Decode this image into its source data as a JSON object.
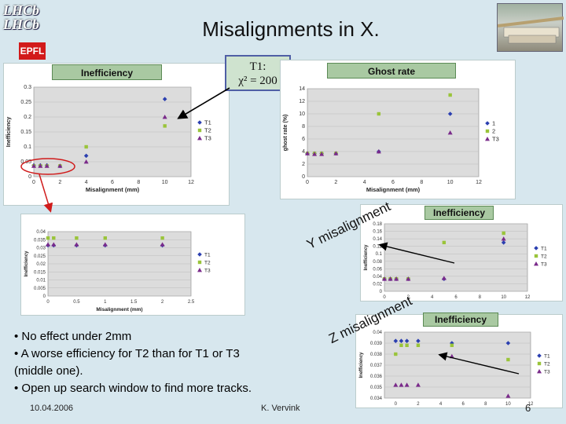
{
  "header": {
    "title": "Misalignments in X.",
    "logo_lhcb_line1": "LHCb",
    "logo_lhcb_line2": "LHCb",
    "logo_epfl": "EPFL"
  },
  "labels": {
    "inefficiency_top": "Inefficiency",
    "ghost_rate": "Ghost rate",
    "chi_line1": "T1:",
    "chi_line2": "χ² = 200",
    "inefficiency_mid": "Inefficiency",
    "inefficiency_bot": "Inefficiency",
    "y_misalignment": "Y misalignment",
    "z_misalignment": "Z misalignment"
  },
  "bullets": [
    "• No effect under 2mm",
    "• A worse efficiency for T2 than for T1 or T3 (middle one).",
    "• Open up search window to find more tracks."
  ],
  "footer": {
    "date": "10.04.2006",
    "author": "K. Vervink",
    "page": "6"
  },
  "chart_data": [
    {
      "type": "scatter",
      "xlabel": "Misalignment (mm)",
      "ylabel": "Inefficiency",
      "xlim": [
        0,
        12
      ],
      "ylim": [
        0.0,
        0.3
      ],
      "xticks": [
        0,
        2,
        4,
        6,
        8,
        10,
        12
      ],
      "yticks": [
        0.0,
        0.05,
        0.1,
        0.15,
        0.2,
        0.25,
        0.3
      ],
      "yticklabels": [
        "0",
        "0.05",
        "0.1",
        "0.15",
        "0.2",
        "0.25",
        "0.3"
      ],
      "series": [
        {
          "name": "T1",
          "color": "#2b3fb0",
          "marker": "diamond",
          "x": [
            0,
            0.5,
            1,
            2,
            4,
            10
          ],
          "y": [
            0.038,
            0.038,
            0.038,
            0.036,
            0.07,
            0.26
          ]
        },
        {
          "name": "T2",
          "color": "#9ac43a",
          "marker": "square",
          "x": [
            0,
            0.5,
            1,
            2,
            4,
            10
          ],
          "y": [
            0.036,
            0.036,
            0.036,
            0.036,
            0.1,
            0.17
          ]
        },
        {
          "name": "T3",
          "color": "#7a2a8a",
          "marker": "triangle",
          "x": [
            0,
            0.5,
            1,
            2,
            4,
            10
          ],
          "y": [
            0.036,
            0.036,
            0.036,
            0.036,
            0.05,
            0.2
          ]
        }
      ]
    },
    {
      "type": "scatter",
      "xlabel": "Misalignment (mm)",
      "ylabel": "ghost rate (%)",
      "xlim": [
        0,
        12
      ],
      "ylim": [
        0,
        14
      ],
      "xticks": [
        0,
        2,
        4,
        6,
        8,
        10,
        12
      ],
      "yticks": [
        0,
        2,
        4,
        6,
        8,
        10,
        12,
        14
      ],
      "series": [
        {
          "name": "1",
          "color": "#2b3fb0",
          "marker": "diamond",
          "x": [
            0,
            0.5,
            1,
            2,
            5,
            10
          ],
          "y": [
            3.7,
            3.7,
            3.7,
            3.7,
            4.0,
            10.0
          ]
        },
        {
          "name": "2",
          "color": "#9ac43a",
          "marker": "square",
          "x": [
            0,
            0.5,
            1,
            2,
            5,
            10
          ],
          "y": [
            3.7,
            3.7,
            3.7,
            3.7,
            10.0,
            13.0
          ]
        },
        {
          "name": "T3",
          "color": "#7a2a8a",
          "marker": "triangle",
          "x": [
            0,
            0.5,
            1,
            2,
            5,
            10
          ],
          "y": [
            3.7,
            3.6,
            3.6,
            3.7,
            4.0,
            7.0
          ]
        }
      ]
    },
    {
      "type": "scatter",
      "xlabel": "Misalignment (mm)",
      "ylabel": "Inefficiency",
      "xlim": [
        0,
        2.5
      ],
      "ylim": [
        0,
        0.04
      ],
      "xticks": [
        0,
        0.5,
        1,
        1.5,
        2,
        2.5
      ],
      "yticks": [
        0,
        0.005,
        0.01,
        0.015,
        0.02,
        0.025,
        0.03,
        0.035,
        0.04
      ],
      "series": [
        {
          "name": "T1",
          "color": "#2b3fb0",
          "marker": "diamond",
          "x": [
            0,
            0.1,
            0.5,
            1,
            2
          ],
          "y": [
            0.0315,
            0.0315,
            0.0315,
            0.0315,
            0.0315
          ]
        },
        {
          "name": "T2",
          "color": "#9ac43a",
          "marker": "square",
          "x": [
            0,
            0.1,
            0.5,
            1,
            2
          ],
          "y": [
            0.036,
            0.036,
            0.036,
            0.036,
            0.036
          ]
        },
        {
          "name": "T3",
          "color": "#7a2a8a",
          "marker": "triangle",
          "x": [
            0,
            0.1,
            0.5,
            1,
            2
          ],
          "y": [
            0.032,
            0.032,
            0.032,
            0.032,
            0.032
          ]
        }
      ]
    },
    {
      "type": "scatter",
      "xlabel": "Misalignment (mm)",
      "ylabel": "Inefficiency",
      "xlim": [
        0,
        12
      ],
      "ylim": [
        0,
        0.18
      ],
      "xticks": [
        0,
        2,
        4,
        6,
        8,
        10,
        12
      ],
      "yticks": [
        0,
        0.02,
        0.04,
        0.06,
        0.08,
        0.1,
        0.12,
        0.14,
        0.16,
        0.18
      ],
      "series": [
        {
          "name": "T1",
          "color": "#2b3fb0",
          "marker": "diamond",
          "x": [
            0,
            0.5,
            1,
            2,
            5,
            10
          ],
          "y": [
            0.033,
            0.033,
            0.033,
            0.033,
            0.033,
            0.13
          ]
        },
        {
          "name": "T2",
          "color": "#9ac43a",
          "marker": "square",
          "x": [
            0,
            0.5,
            1,
            2,
            5,
            10
          ],
          "y": [
            0.033,
            0.033,
            0.033,
            0.033,
            0.13,
            0.155
          ]
        },
        {
          "name": "T3",
          "color": "#7a2a8a",
          "marker": "triangle",
          "x": [
            0,
            0.5,
            1,
            2,
            5,
            10
          ],
          "y": [
            0.033,
            0.033,
            0.033,
            0.033,
            0.035,
            0.14
          ]
        }
      ]
    },
    {
      "type": "scatter",
      "xlabel": "",
      "ylabel": "Inefficiency",
      "xlim": [
        -1,
        12
      ],
      "ylim": [
        0.034,
        0.04
      ],
      "xticks": [
        0,
        2,
        4,
        6,
        8,
        10,
        12
      ],
      "yticks": [
        0.034,
        0.035,
        0.036,
        0.037,
        0.038,
        0.039,
        0.04
      ],
      "yticklabels": [
        "0.034",
        "0.035",
        "0.036",
        "0.037",
        "0.038",
        "0.039",
        "0.04"
      ],
      "series": [
        {
          "name": "T1",
          "color": "#2b3fb0",
          "marker": "diamond",
          "x": [
            0,
            0.5,
            1,
            2,
            5,
            10
          ],
          "y": [
            0.0392,
            0.0392,
            0.0392,
            0.0392,
            0.039,
            0.039
          ]
        },
        {
          "name": "T2",
          "color": "#9ac43a",
          "marker": "square",
          "x": [
            0,
            0.5,
            1,
            2,
            5,
            10
          ],
          "y": [
            0.038,
            0.0388,
            0.0388,
            0.0388,
            0.0388,
            0.0375
          ]
        },
        {
          "name": "T3",
          "color": "#7a2a8a",
          "marker": "triangle",
          "x": [
            0,
            0.5,
            1,
            2,
            5,
            10
          ],
          "y": [
            0.0352,
            0.0352,
            0.0352,
            0.0352,
            0.0378,
            0.0342
          ]
        }
      ]
    }
  ]
}
